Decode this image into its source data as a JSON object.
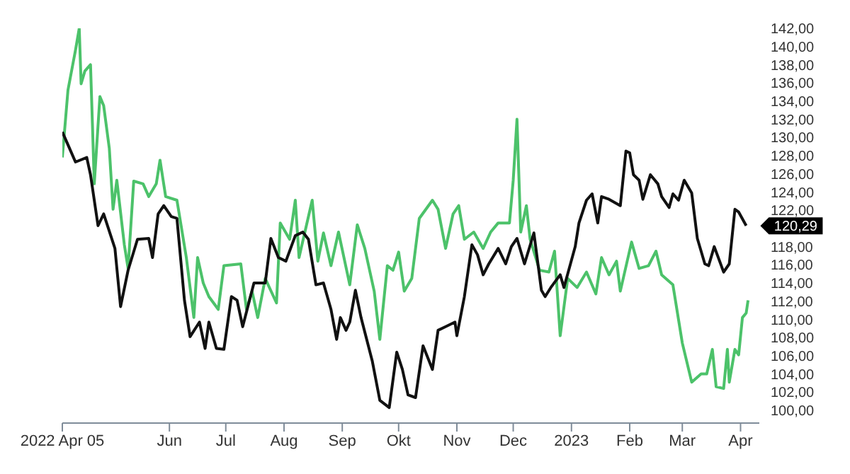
{
  "chart_data": {
    "type": "line",
    "xlim": [
      "2022-04-05",
      "2023-04-11"
    ],
    "xticks": [
      {
        "value": "2022-04-05",
        "label": "2022 Apr 05"
      },
      {
        "value": "2022-06-01",
        "label": "Jun"
      },
      {
        "value": "2022-07-01",
        "label": "Jul"
      },
      {
        "value": "2022-08-01",
        "label": "Aug"
      },
      {
        "value": "2022-09-01",
        "label": "Sep"
      },
      {
        "value": "2022-10-01",
        "label": "Okt"
      },
      {
        "value": "2022-11-01",
        "label": "Nov"
      },
      {
        "value": "2022-12-01",
        "label": "Dec"
      },
      {
        "value": "2023-01-01",
        "label": "2023"
      },
      {
        "value": "2023-02-01",
        "label": "Feb"
      },
      {
        "value": "2023-03-01",
        "label": "Mar"
      },
      {
        "value": "2023-04-01",
        "label": "Apr"
      }
    ],
    "ylim": [
      98.6,
      142
    ],
    "yticks": [
      {
        "value": 100,
        "label": "100,00"
      },
      {
        "value": 102,
        "label": "102,00"
      },
      {
        "value": 104,
        "label": "104,00"
      },
      {
        "value": 106,
        "label": "106,00"
      },
      {
        "value": 108,
        "label": "108,00"
      },
      {
        "value": 110,
        "label": "110,00"
      },
      {
        "value": 112,
        "label": "112,00"
      },
      {
        "value": 114,
        "label": "114,00"
      },
      {
        "value": 116,
        "label": "116,00"
      },
      {
        "value": 118,
        "label": "118,00"
      },
      {
        "value": 122,
        "label": "122,00"
      },
      {
        "value": 124,
        "label": "124,00"
      },
      {
        "value": 126,
        "label": "126,00"
      },
      {
        "value": 128,
        "label": "128,00"
      },
      {
        "value": 130,
        "label": "130,00"
      },
      {
        "value": 132,
        "label": "132,00"
      },
      {
        "value": 134,
        "label": "134,00"
      },
      {
        "value": 136,
        "label": "136,00"
      },
      {
        "value": 138,
        "label": "138,00"
      },
      {
        "value": 140,
        "label": "140,00"
      },
      {
        "value": 142,
        "label": "142,00"
      }
    ],
    "annotations": [
      {
        "text": "120,29",
        "x": "2023-04-04",
        "y": 120.29
      }
    ],
    "series": [
      {
        "color": "#4cc26a",
        "x": [
          "2022-04-05",
          "2022-04-08",
          "2022-04-12",
          "2022-04-14",
          "2022-04-15",
          "2022-04-17",
          "2022-04-20",
          "2022-04-21",
          "2022-04-22",
          "2022-04-25",
          "2022-04-27",
          "2022-04-30",
          "2022-05-02",
          "2022-05-04",
          "2022-05-08",
          "2022-05-10",
          "2022-05-13",
          "2022-05-18",
          "2022-05-21",
          "2022-05-25",
          "2022-05-27",
          "2022-05-30",
          "2022-06-05",
          "2022-06-10",
          "2022-06-14",
          "2022-06-16",
          "2022-06-19",
          "2022-06-22",
          "2022-06-27",
          "2022-06-30",
          "2022-07-09",
          "2022-07-12",
          "2022-07-15",
          "2022-07-18",
          "2022-07-22",
          "2022-07-28",
          "2022-07-30",
          "2022-08-04",
          "2022-08-07",
          "2022-08-09",
          "2022-08-16",
          "2022-08-19",
          "2022-08-22",
          "2022-08-26",
          "2022-08-30",
          "2022-09-05",
          "2022-09-09",
          "2022-09-13",
          "2022-09-18",
          "2022-09-21",
          "2022-09-25",
          "2022-09-28",
          "2022-10-01",
          "2022-10-04",
          "2022-10-08",
          "2022-10-12",
          "2022-10-19",
          "2022-10-22",
          "2022-10-26",
          "2022-10-30",
          "2022-11-02",
          "2022-11-05",
          "2022-11-10",
          "2022-11-15",
          "2022-11-19",
          "2022-11-23",
          "2022-11-29",
          "2022-12-01",
          "2022-12-03",
          "2022-12-05",
          "2022-12-08",
          "2022-12-10",
          "2022-12-15",
          "2022-12-20",
          "2022-12-23",
          "2022-12-26",
          "2022-12-30",
          "2023-01-04",
          "2023-01-09",
          "2023-01-14",
          "2023-01-17",
          "2023-01-21",
          "2023-01-25",
          "2023-01-27",
          "2023-02-02",
          "2023-02-06",
          "2023-02-11",
          "2023-02-15",
          "2023-02-18",
          "2023-02-24",
          "2023-03-01",
          "2023-03-06",
          "2023-03-11",
          "2023-03-14",
          "2023-03-17",
          "2023-03-19",
          "2023-03-23",
          "2023-03-25",
          "2023-03-26",
          "2023-03-29",
          "2023-03-31",
          "2023-04-02",
          "2023-04-04",
          "2023-04-05"
        ],
        "values": [
          127.8,
          135.2,
          139.6,
          142.0,
          135.9,
          137.3,
          138.0,
          131.6,
          124.9,
          134.5,
          133.5,
          128.8,
          122.1,
          125.3,
          118.2,
          115.6,
          125.2,
          124.9,
          123.5,
          124.9,
          127.5,
          123.5,
          123.1,
          116.8,
          110.2,
          116.8,
          114.0,
          112.5,
          111.1,
          115.9,
          116.1,
          111.1,
          113.1,
          110.2,
          114.5,
          111.8,
          120.6,
          118.8,
          123.1,
          116.8,
          123.1,
          116.4,
          119.5,
          115.9,
          119.6,
          113.8,
          120.4,
          117.8,
          113.1,
          107.8,
          115.9,
          115.4,
          117.4,
          113.1,
          114.5,
          121.1,
          123.1,
          122.1,
          117.8,
          121.6,
          122.5,
          118.8,
          119.6,
          117.8,
          119.6,
          120.6,
          120.6,
          125.3,
          132.0,
          119.6,
          122.5,
          118.8,
          115.4,
          115.2,
          117.5,
          108.2,
          114.5,
          113.5,
          115.2,
          112.8,
          116.8,
          114.9,
          116.4,
          113.1,
          118.5,
          115.6,
          115.9,
          117.5,
          114.9,
          113.8,
          107.4,
          103.1,
          104.0,
          104.0,
          106.7,
          102.6,
          102.4,
          106.7,
          103.1,
          106.7,
          106.1,
          110.2,
          110.7,
          112.1
        ]
      },
      {
        "color": "#111111",
        "x": [
          "2022-04-05",
          "2022-04-08",
          "2022-04-12",
          "2022-04-18",
          "2022-04-20",
          "2022-04-24",
          "2022-04-27",
          "2022-05-03",
          "2022-05-06",
          "2022-05-10",
          "2022-05-15",
          "2022-05-21",
          "2022-05-23",
          "2022-05-26",
          "2022-05-29",
          "2022-06-02",
          "2022-06-05",
          "2022-06-09",
          "2022-06-12",
          "2022-06-17",
          "2022-06-20",
          "2022-06-22",
          "2022-06-26",
          "2022-06-30",
          "2022-07-04",
          "2022-07-07",
          "2022-07-10",
          "2022-07-16",
          "2022-07-22",
          "2022-07-25",
          "2022-07-29",
          "2022-08-02",
          "2022-08-07",
          "2022-08-11",
          "2022-08-14",
          "2022-08-18",
          "2022-08-22",
          "2022-08-26",
          "2022-08-29",
          "2022-08-31",
          "2022-09-03",
          "2022-09-05",
          "2022-09-08",
          "2022-09-11",
          "2022-09-17",
          "2022-09-21",
          "2022-09-26",
          "2022-09-30",
          "2022-10-03",
          "2022-10-06",
          "2022-10-10",
          "2022-10-14",
          "2022-10-19",
          "2022-10-22",
          "2022-10-26",
          "2022-10-31",
          "2022-11-01",
          "2022-11-05",
          "2022-11-09",
          "2022-11-12",
          "2022-11-15",
          "2022-11-18",
          "2022-11-23",
          "2022-11-27",
          "2022-11-30",
          "2022-12-03",
          "2022-12-07",
          "2022-12-12",
          "2022-12-16",
          "2022-12-18",
          "2022-12-21",
          "2022-12-26",
          "2022-12-28",
          "2023-01-03",
          "2023-01-05",
          "2023-01-09",
          "2023-01-12",
          "2023-01-15",
          "2023-01-17",
          "2023-01-21",
          "2023-01-27",
          "2023-01-30",
          "2023-02-01",
          "2023-02-03",
          "2023-02-06",
          "2023-02-08",
          "2023-02-12",
          "2023-02-16",
          "2023-02-18",
          "2023-02-22",
          "2023-02-24",
          "2023-02-27",
          "2023-03-02",
          "2023-03-06",
          "2023-03-09",
          "2023-03-13",
          "2023-03-15",
          "2023-03-18",
          "2023-03-23",
          "2023-03-26",
          "2023-03-29",
          "2023-03-31",
          "2023-04-04"
        ],
        "values": [
          130.6,
          129.2,
          127.3,
          127.8,
          125.9,
          120.3,
          121.6,
          117.8,
          111.4,
          115.4,
          118.8,
          118.9,
          116.8,
          121.6,
          122.5,
          121.3,
          121.1,
          112.1,
          108.1,
          109.7,
          106.8,
          109.7,
          106.8,
          106.7,
          112.5,
          112.1,
          109.2,
          114.0,
          114.0,
          118.9,
          116.8,
          116.4,
          119.2,
          119.6,
          118.8,
          113.8,
          114.0,
          111.1,
          107.8,
          110.2,
          108.8,
          109.7,
          113.2,
          110.2,
          105.4,
          101.1,
          100.3,
          106.4,
          104.5,
          101.7,
          101.4,
          107.1,
          104.5,
          108.8,
          109.2,
          109.7,
          108.2,
          112.5,
          118.2,
          117.1,
          114.9,
          116.1,
          117.8,
          116.1,
          118.0,
          118.9,
          116.1,
          119.5,
          113.2,
          112.5,
          113.5,
          114.9,
          113.5,
          118.0,
          120.6,
          123.1,
          123.8,
          120.6,
          123.5,
          123.2,
          122.5,
          128.5,
          128.3,
          125.9,
          125.3,
          123.2,
          125.9,
          124.9,
          123.5,
          122.3,
          123.8,
          123.1,
          125.3,
          123.9,
          118.9,
          116.1,
          115.9,
          118.0,
          115.2,
          116.1,
          122.1,
          121.8,
          120.3
        ]
      }
    ]
  }
}
